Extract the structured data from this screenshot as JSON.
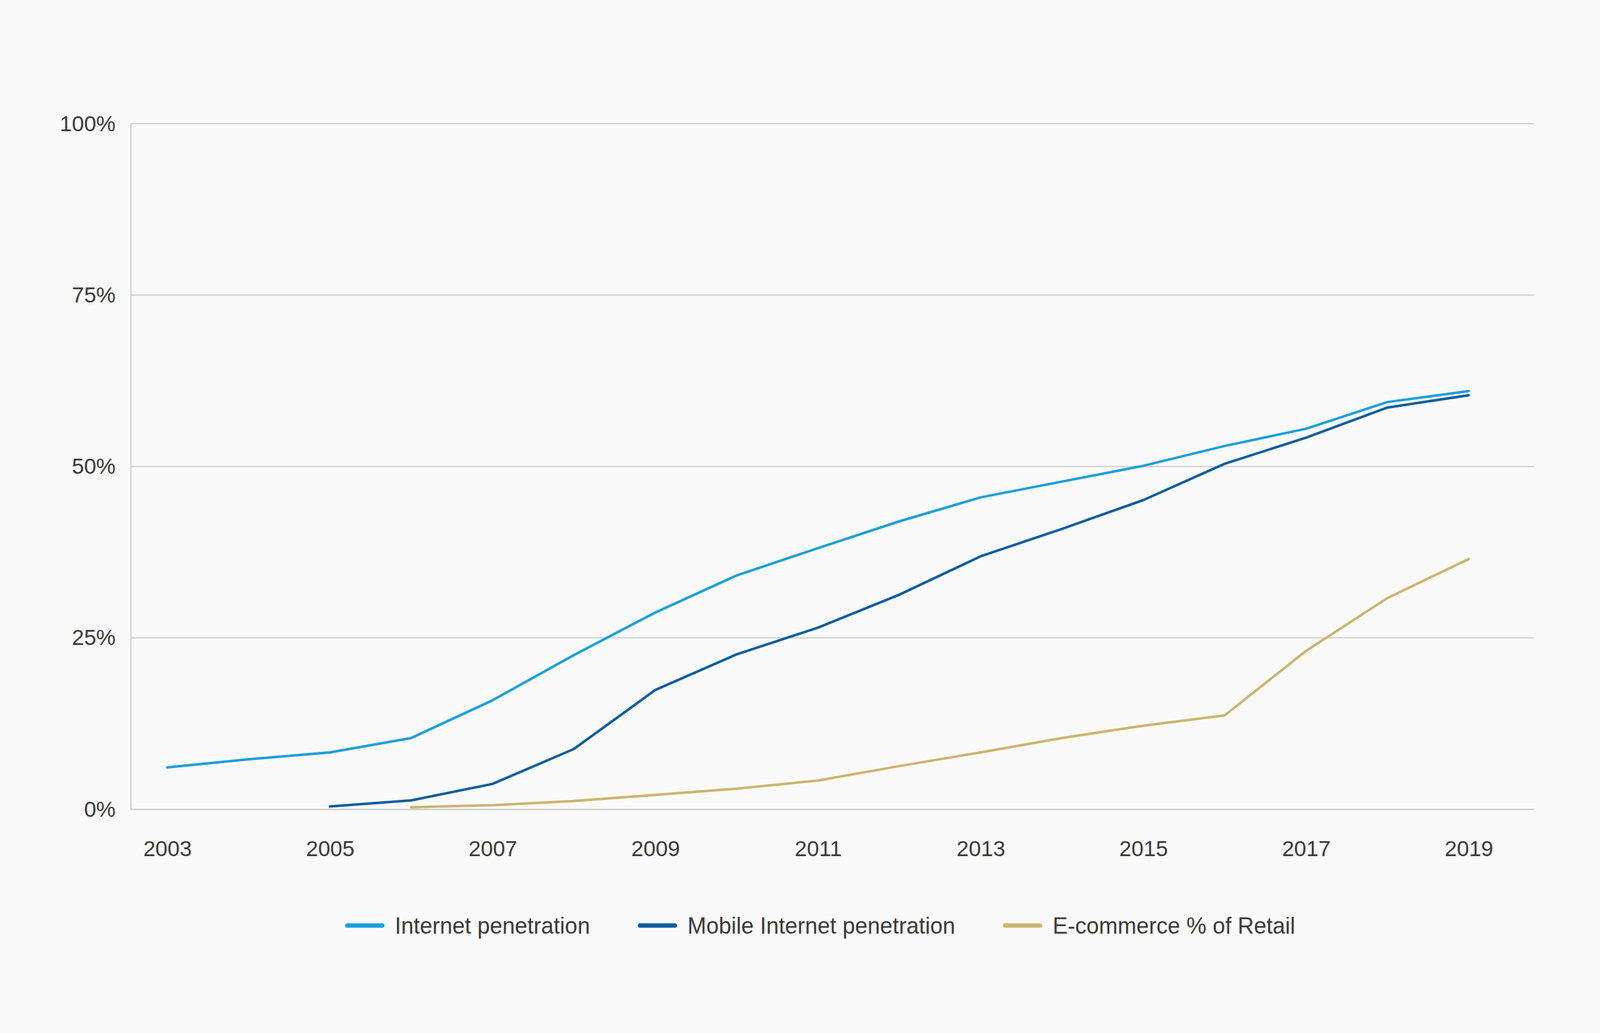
{
  "chart_data": {
    "type": "line",
    "x": [
      2003,
      2004,
      2005,
      2006,
      2007,
      2008,
      2009,
      2010,
      2011,
      2012,
      2013,
      2014,
      2015,
      2016,
      2017,
      2018,
      2019
    ],
    "series": [
      {
        "name": "Internet penetration",
        "color": "#1a9fdb",
        "values": [
          6.1,
          7.3,
          8.3,
          10.4,
          15.9,
          22.5,
          28.7,
          34.1,
          38.1,
          42.0,
          45.5,
          47.8,
          50.1,
          53.0,
          55.5,
          59.4,
          61.0
        ]
      },
      {
        "name": "Mobile Internet penetration",
        "color": "#0b5c9e",
        "values": [
          null,
          null,
          0.4,
          1.3,
          3.7,
          8.8,
          17.4,
          22.6,
          26.5,
          31.3,
          36.9,
          40.9,
          45.1,
          50.4,
          54.2,
          58.6,
          60.4
        ]
      },
      {
        "name": "E-commerce % of Retail",
        "color": "#c9b56e",
        "values": [
          null,
          null,
          null,
          0.3,
          0.6,
          1.2,
          2.1,
          3.0,
          4.2,
          6.3,
          8.3,
          10.4,
          12.2,
          13.7,
          23.1,
          30.8,
          36.5
        ]
      }
    ],
    "xlim": [
      2002.55,
      2019.8
    ],
    "xticks": [
      2003,
      2005,
      2007,
      2009,
      2011,
      2013,
      2015,
      2017,
      2019
    ],
    "ylim": [
      0,
      100
    ],
    "yticks": [
      {
        "value": 0,
        "label": "0%"
      },
      {
        "value": 25,
        "label": "25%"
      },
      {
        "value": 50,
        "label": "50%"
      },
      {
        "value": 75,
        "label": "75%"
      },
      {
        "value": 100,
        "label": "100%"
      }
    ],
    "grid": true,
    "legend": "bottom"
  }
}
